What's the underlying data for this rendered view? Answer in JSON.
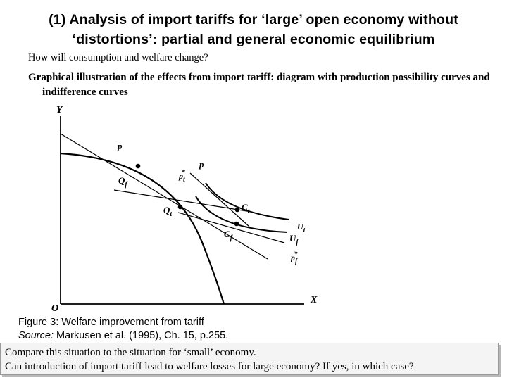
{
  "title_line1": "(1) Analysis of import tariffs for ‘large’ open economy without",
  "title_line2": "‘distortions’: partial and general economic equilibrium",
  "question1": "How will consumption and welfare change?",
  "question2": "Graphical illustration of the effects from import tariff: diagram with production possibility curves and indifference curves",
  "diagram": {
    "axis_y": "Y",
    "axis_x": "X",
    "origin": "O",
    "labels": {
      "p_top": "p",
      "p_mid": "p",
      "pt_star": "pt*",
      "Qf": "Qf",
      "Qt": "Qt",
      "Ct": "Ct",
      "Cf": "Cf",
      "Ut": "Ut",
      "Uf": "Uf",
      "pf_star": "pf*"
    }
  },
  "caption": {
    "line1": "Figure 3: Welfare improvement from tariff",
    "source_label": "Source:",
    "source_text": " Markusen et al. (1995), Ch. 15, p.255."
  },
  "bottom": {
    "line1": "Compare this situation to the situation for ‘small’ economy.",
    "line2": "Can introduction of import tariff lead to welfare losses for large economy? If yes, in which case?"
  }
}
